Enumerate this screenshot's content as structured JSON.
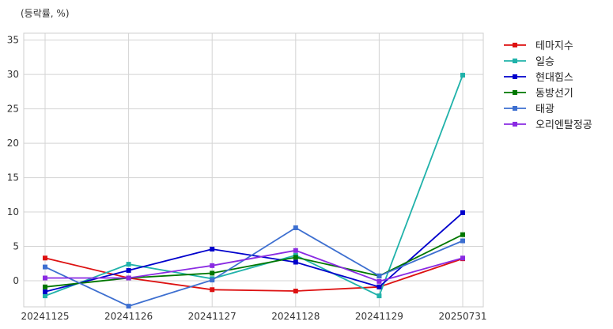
{
  "chart_data": {
    "type": "line",
    "ylabel": "(등락률, %)",
    "categories": [
      "20241125",
      "20241126",
      "20241127",
      "20241128",
      "20241129",
      "20250731"
    ],
    "yticks": [
      0,
      5,
      10,
      15,
      20,
      25,
      30,
      35
    ],
    "ylim": [
      -3.8,
      36
    ],
    "grid": true,
    "legend_position": "outside-right-top",
    "series": [
      {
        "name": "테마지수",
        "color": "#dd1111",
        "values": [
          3.3,
          0.4,
          -1.3,
          -1.5,
          -0.9,
          3.2
        ]
      },
      {
        "name": "일승",
        "color": "#20b2aa",
        "values": [
          -2.2,
          2.4,
          0.3,
          3.7,
          -2.2,
          29.9
        ]
      },
      {
        "name": "현대힘스",
        "color": "#0000cc",
        "values": [
          -1.6,
          1.5,
          4.6,
          2.7,
          -0.9,
          9.9
        ]
      },
      {
        "name": "동방선기",
        "color": "#007700",
        "values": [
          -0.9,
          0.4,
          1.1,
          3.4,
          0.7,
          6.7
        ]
      },
      {
        "name": "태광",
        "color": "#3d6fd0",
        "values": [
          2.0,
          -3.7,
          0.1,
          7.7,
          0.7,
          5.8
        ]
      },
      {
        "name": "오리엔탈정공",
        "color": "#8a2be2",
        "values": [
          0.4,
          0.4,
          2.2,
          4.4,
          -0.1,
          3.3
        ]
      }
    ]
  }
}
